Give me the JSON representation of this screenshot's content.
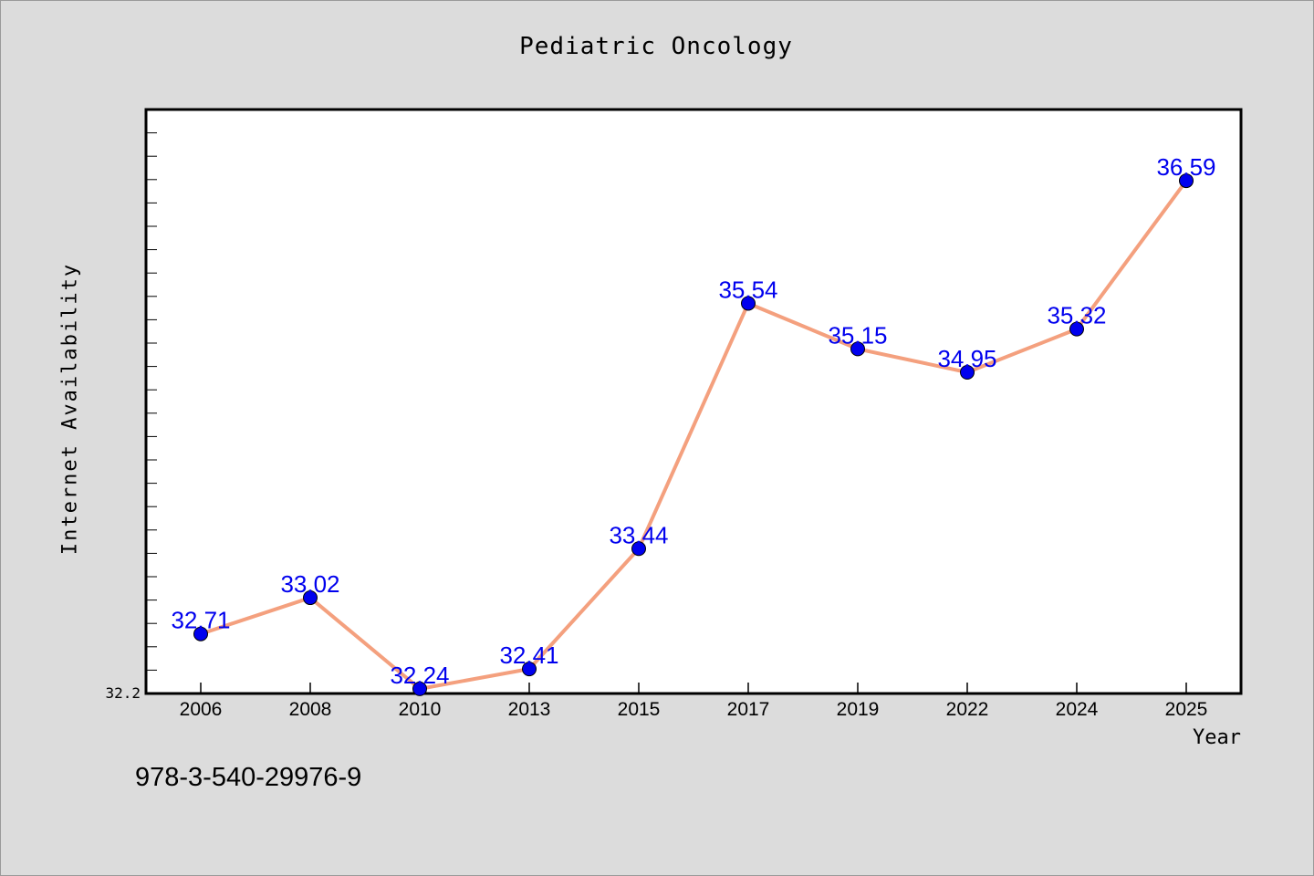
{
  "chart_data": {
    "type": "line",
    "title": "Pediatric Oncology",
    "xlabel": "Year",
    "ylabel": "Internet Availability",
    "categories": [
      "2006",
      "2008",
      "2010",
      "2013",
      "2015",
      "2017",
      "2019",
      "2022",
      "2024",
      "2025"
    ],
    "series": [
      {
        "values": [
          32.71,
          33.02,
          32.24,
          32.41,
          33.44,
          35.54,
          35.15,
          34.95,
          35.32,
          36.59
        ],
        "labels": [
          "32.71",
          "33.02",
          "32.24",
          "32.41",
          "33.44",
          "35.54",
          "35.15",
          "34.95",
          "35.32",
          "36.59"
        ]
      }
    ],
    "ylim": [
      32.2,
      37.2
    ],
    "y_min_label": "32.2",
    "grid": false,
    "line_color": "#f4a07e",
    "marker_color": "#0000ee",
    "label_color": "#0000ee"
  },
  "footer": {
    "isbn": "978-3-540-29976-9"
  }
}
